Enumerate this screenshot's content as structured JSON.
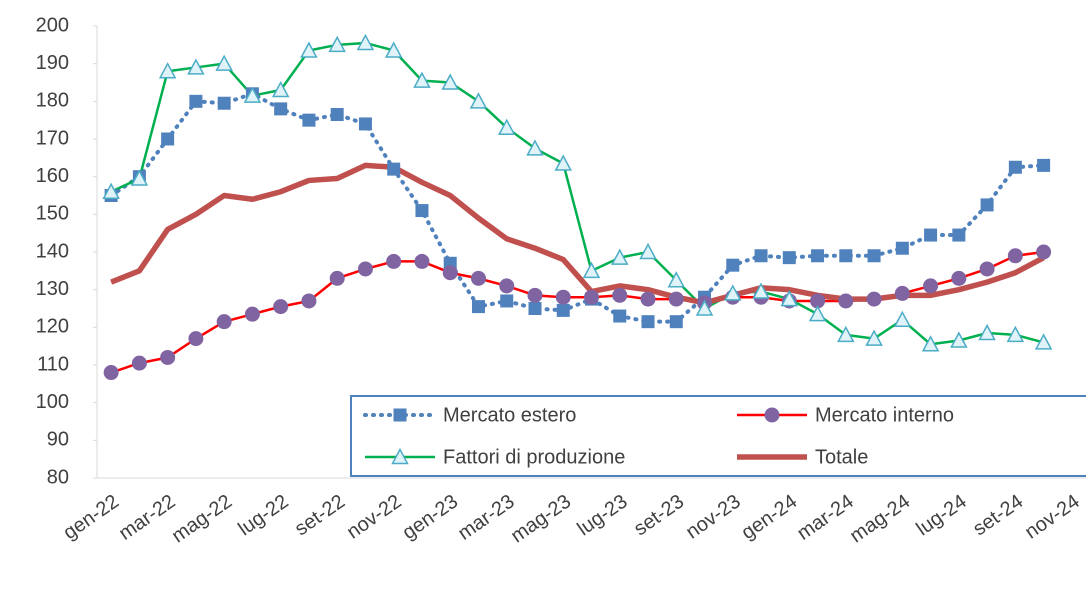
{
  "chart_data": {
    "type": "line",
    "categories": [
      "gen-22",
      null,
      "mar-22",
      null,
      "mag-22",
      null,
      "lug-22",
      null,
      "set-22",
      null,
      "nov-22",
      null,
      "gen-23",
      null,
      "mar-23",
      null,
      "mag-23",
      null,
      "lug-23",
      null,
      "set-23",
      null,
      "nov-23",
      null,
      "gen-24",
      null,
      "mar-24",
      null,
      "mag-24",
      null,
      "lug-24",
      null,
      "set-24",
      null,
      "nov-24"
    ],
    "series": [
      {
        "name": "Mercato estero",
        "color": "#4f81bd",
        "marker": "square",
        "line_style": "dotted",
        "values": [
          155,
          160,
          170,
          180,
          179.5,
          182,
          178,
          175,
          176.5,
          174,
          162,
          151,
          137,
          125.5,
          127,
          125,
          124.5,
          127.5,
          123,
          121.5,
          121.5,
          128,
          136.5,
          139,
          138.5,
          139,
          139,
          139,
          141,
          144.5,
          144.5,
          152.5,
          162.5,
          163,
          null
        ]
      },
      {
        "name": "Mercato interno",
        "color": "#ff0000",
        "marker": "circle",
        "marker_color": "#8064a2",
        "line_style": "solid",
        "values": [
          108,
          110.5,
          112,
          117,
          121.5,
          123.5,
          125.5,
          127,
          133,
          135.5,
          137.5,
          137.5,
          134.5,
          133,
          131,
          128.5,
          128,
          128,
          128.5,
          127.5,
          127.5,
          126.5,
          128,
          128,
          127,
          127,
          127,
          127.5,
          129,
          131,
          133,
          135.5,
          139,
          140,
          null
        ]
      },
      {
        "name": "Fattori di produzione",
        "color": "#00b050",
        "marker": "triangle",
        "marker_color": "#4bacc6",
        "line_style": "solid",
        "values": [
          156,
          159.5,
          188,
          189,
          190,
          181.5,
          183,
          193.5,
          195,
          195.5,
          193.5,
          185.5,
          185,
          180,
          173,
          167.5,
          163.5,
          135,
          138.5,
          140,
          132.5,
          125,
          129,
          129.5,
          127.5,
          123.5,
          118,
          117,
          122,
          115.5,
          116.5,
          118.5,
          118,
          116,
          null
        ]
      },
      {
        "name": "Totale",
        "color": "#c0504d",
        "marker": "none",
        "line_style": "thick",
        "values": [
          132,
          135,
          146,
          150,
          155,
          154,
          156,
          159,
          159.5,
          163,
          162.5,
          158.5,
          155,
          149,
          143.5,
          141,
          138,
          129.5,
          131,
          130,
          128,
          126.5,
          128.5,
          130.5,
          130,
          128.5,
          127.5,
          127.5,
          128.5,
          128.5,
          130,
          132,
          134.5,
          138.5,
          null
        ]
      }
    ],
    "ylim": [
      80,
      200
    ],
    "yticks": [
      80,
      90,
      100,
      110,
      120,
      130,
      140,
      150,
      160,
      170,
      180,
      190,
      200
    ],
    "grid": false,
    "legend": "bottom-right"
  }
}
